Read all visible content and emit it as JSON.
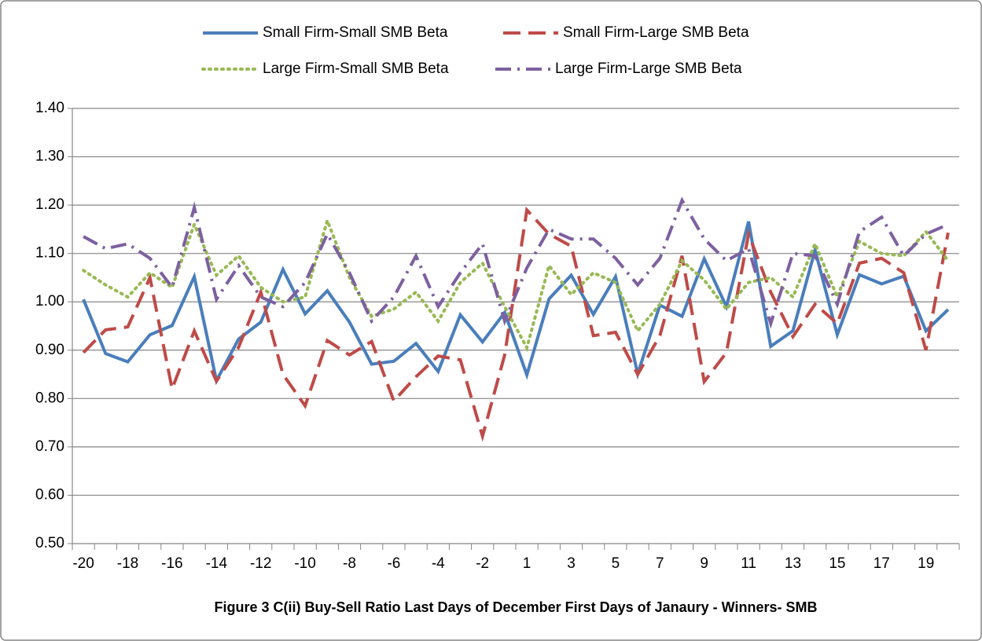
{
  "chart_data": {
    "type": "line",
    "title": "Figure 3 C(ii) Buy-Sell Ratio Last Days of December First Days of Janaury - Winners- SMB",
    "categories": [
      "-20",
      null,
      "-18",
      null,
      "-16",
      null,
      "-14",
      null,
      "-12",
      null,
      "-10",
      null,
      "-8",
      null,
      "-6",
      null,
      "-4",
      null,
      "-2",
      null,
      "1",
      null,
      "3",
      null,
      "5",
      null,
      "7",
      null,
      "9",
      null,
      "11",
      null,
      "13",
      null,
      "15",
      null,
      "17",
      null,
      "19",
      null
    ],
    "ylim": [
      0.5,
      1.4
    ],
    "yticks": [
      {
        "value": 0.5,
        "label": "0.50"
      },
      {
        "value": 0.6,
        "label": "0.60"
      },
      {
        "value": 0.7,
        "label": "0.70"
      },
      {
        "value": 0.8,
        "label": "0.80"
      },
      {
        "value": 0.9,
        "label": "0.90"
      },
      {
        "value": 1.0,
        "label": "1.00"
      },
      {
        "value": 1.1,
        "label": "1.10"
      },
      {
        "value": 1.2,
        "label": "1.20"
      },
      {
        "value": 1.3,
        "label": "1.30"
      },
      {
        "value": 1.4,
        "label": "1.40"
      }
    ],
    "grid": true,
    "legend": "top",
    "series": [
      {
        "name": "Small Firm-Small SMB Beta",
        "color": "#4a7ebb",
        "style": "solid",
        "values": [
          1.005,
          0.893,
          0.876,
          0.932,
          0.951,
          1.052,
          0.837,
          0.923,
          0.958,
          1.067,
          0.975,
          1.023,
          0.958,
          0.871,
          0.877,
          0.914,
          0.856,
          0.973,
          0.917,
          0.978,
          0.849,
          1.006,
          1.055,
          0.974,
          1.052,
          0.851,
          0.993,
          0.97,
          1.089,
          0.99,
          1.166,
          0.908,
          0.94,
          1.107,
          0.932,
          1.056,
          1.037,
          1.053,
          0.94,
          0.984
        ]
      },
      {
        "name": "Small Firm-Large SMB Beta",
        "color": "#be4b48",
        "style": "dash",
        "values": [
          0.895,
          0.942,
          0.948,
          1.05,
          0.82,
          0.94,
          0.836,
          0.906,
          1.02,
          0.85,
          0.785,
          0.92,
          0.89,
          0.918,
          0.795,
          0.845,
          0.888,
          0.88,
          0.722,
          0.89,
          1.19,
          1.14,
          1.115,
          0.93,
          0.937,
          0.85,
          0.93,
          1.095,
          0.835,
          0.895,
          1.14,
          1.02,
          0.928,
          0.995,
          0.955,
          1.08,
          1.09,
          1.06,
          0.9,
          1.143
        ]
      },
      {
        "name": "Large Firm-Small SMB Beta",
        "color": "#98b954",
        "style": "dot",
        "values": [
          1.065,
          1.035,
          1.01,
          1.06,
          1.03,
          1.16,
          1.055,
          1.095,
          1.03,
          1.0,
          1.01,
          1.168,
          1.05,
          0.97,
          0.985,
          1.02,
          0.96,
          1.04,
          1.08,
          0.99,
          0.905,
          1.075,
          1.015,
          1.06,
          1.04,
          0.94,
          0.995,
          1.085,
          1.045,
          0.985,
          1.04,
          1.05,
          1.01,
          1.12,
          1.01,
          1.125,
          1.1,
          1.095,
          1.145,
          1.085
        ]
      },
      {
        "name": "Large Firm-Large SMB Beta",
        "color": "#7d60a0",
        "style": "dashdot",
        "values": [
          1.135,
          1.11,
          1.12,
          1.09,
          1.03,
          1.195,
          1.005,
          1.075,
          1.01,
          0.99,
          1.04,
          1.14,
          1.06,
          0.96,
          1.01,
          1.095,
          0.99,
          1.06,
          1.12,
          0.96,
          1.07,
          1.15,
          1.13,
          1.13,
          1.09,
          1.035,
          1.09,
          1.21,
          1.13,
          1.085,
          1.11,
          0.955,
          1.1,
          1.095,
          0.995,
          1.145,
          1.175,
          1.095,
          1.14,
          1.16
        ]
      }
    ]
  }
}
